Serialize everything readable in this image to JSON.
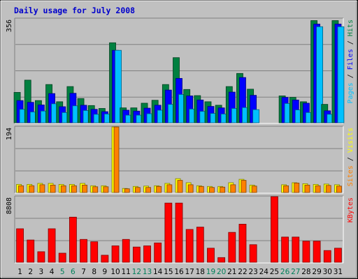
{
  "chart_data": {
    "type": "bar",
    "title": "Daily usage for July 2008",
    "categories": [
      "1",
      "2",
      "3",
      "4",
      "5",
      "6",
      "7",
      "8",
      "9",
      "10",
      "11",
      "12",
      "13",
      "14",
      "15",
      "16",
      "17",
      "18",
      "19",
      "20",
      "21",
      "22",
      "23",
      "24",
      "25",
      "26",
      "27",
      "28",
      "29",
      "30",
      "31"
    ],
    "weekend_days": [
      "5",
      "6",
      "12",
      "13",
      "19",
      "20",
      "26",
      "27"
    ],
    "panels": [
      {
        "name": "hits-files-pages",
        "ymax_label": "356",
        "ymax": 356,
        "legend": [
          "Pages",
          "/",
          "Files",
          "/",
          "Hits"
        ],
        "series": [
          {
            "name": "Hits",
            "color": "#008040",
            "values": [
              104,
              146,
              76,
              131,
              72,
              124,
              83,
              59,
              49,
              274,
              51,
              51,
              67,
              77,
              131,
              223,
              114,
              93,
              72,
              60,
              124,
              169,
              115,
              0,
              0,
              92,
              87,
              72,
              350,
              63,
              350
            ]
          },
          {
            "name": "Files",
            "color": "#0000ff",
            "values": [
              76,
              70,
              61,
              100,
              55,
              101,
              60,
              46,
              38,
              248,
              43,
              40,
              50,
              60,
              112,
              152,
              92,
              78,
              56,
              51,
              105,
              155,
              94,
              0,
              0,
              87,
              78,
              67,
              338,
              41,
              338
            ]
          },
          {
            "name": "Pages",
            "color": "#00c0ff",
            "values": [
              46,
              37,
              40,
              65,
              35,
              58,
              42,
              29,
              30,
              248,
              26,
              26,
              31,
              43,
              63,
              97,
              47,
              39,
              32,
              30,
              49,
              52,
              45,
              0,
              0,
              66,
              44,
              35,
              329,
              29,
              329
            ]
          }
        ]
      },
      {
        "name": "visits-sites",
        "ymax_label": "194",
        "ymax": 194,
        "legend": [
          "Sites",
          "/",
          "Visits"
        ],
        "series": [
          {
            "name": "Visits",
            "color": "#ffff00",
            "values": [
              24,
              24,
              27,
              27,
              24,
              24,
              27,
              20,
              20,
              194,
              12,
              18,
              19,
              20,
              27,
              41,
              29,
              20,
              18,
              18,
              29,
              39,
              22,
              0,
              0,
              23,
              29,
              26,
              24,
              25,
              23
            ]
          },
          {
            "name": "Sites",
            "color": "#ff8000",
            "values": [
              20,
              20,
              23,
              22,
              20,
              20,
              22,
              17,
              17,
              194,
              11,
              15,
              15,
              18,
              23,
              36,
              23,
              18,
              15,
              16,
              23,
              36,
              19,
              0,
              0,
              20,
              28,
              22,
              20,
              21,
              19
            ]
          }
        ]
      },
      {
        "name": "kbytes",
        "ymax_label": "8808",
        "ymax": 8808,
        "legend": [
          "KBytes"
        ],
        "series": [
          {
            "name": "KBytes",
            "color": "#ff0000",
            "values": [
              4500,
              2992,
              1417,
              4500,
              1220,
              6062,
              3070,
              2756,
              945,
              2205,
              3070,
              2047,
              2205,
              2598,
              7953,
              7953,
              4409,
              4724,
              1890,
              630,
              4016,
              5118,
              2362,
              0,
              8808,
              3386,
              3386,
              2835,
              2835,
              1575,
              1890
            ]
          }
        ]
      }
    ]
  }
}
